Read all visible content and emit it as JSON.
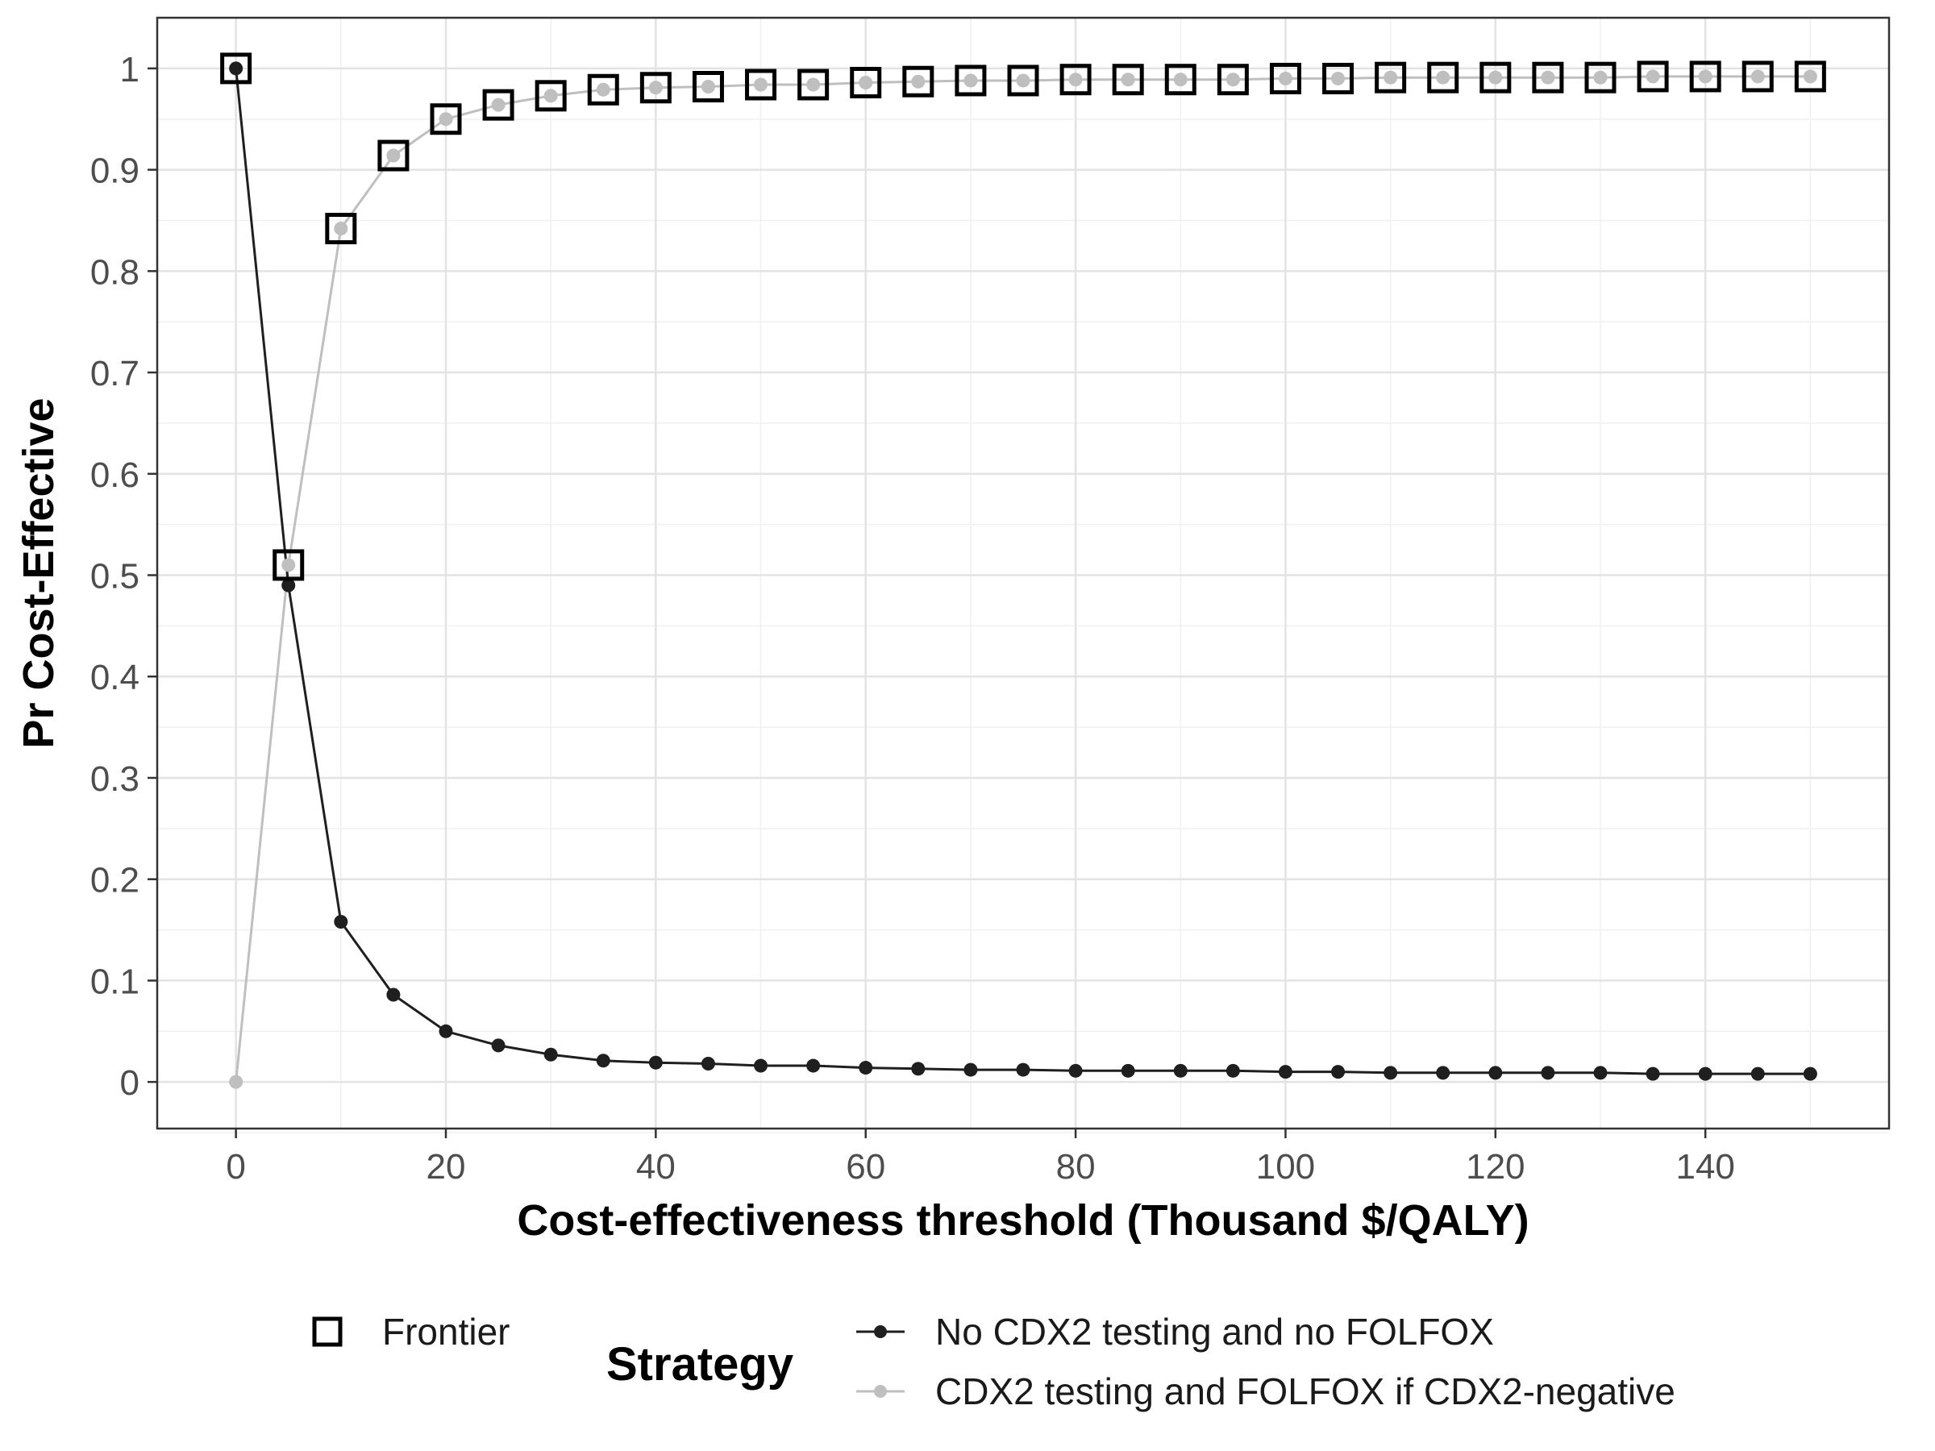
{
  "chart_data": {
    "type": "line",
    "title": "",
    "xlabel": "Cost-effectiveness threshold (Thousand $/QALY)",
    "ylabel": "Pr Cost-Effective",
    "xlim": [
      -7.5,
      157.5
    ],
    "ylim": [
      -0.046,
      1.05
    ],
    "x_ticks": [
      0,
      20,
      40,
      60,
      80,
      100,
      120,
      140
    ],
    "y_ticks": [
      0,
      0.1,
      0.2,
      0.3,
      0.4,
      0.5,
      0.6,
      0.7,
      0.8,
      0.9,
      1
    ],
    "x_tick_labels": [
      "0",
      "20",
      "40",
      "60",
      "80",
      "100",
      "120",
      "140"
    ],
    "y_tick_labels": [
      "0",
      "0.1",
      "0.2",
      "0.3",
      "0.4",
      "0.5",
      "0.6",
      "0.7",
      "0.8",
      "0.9",
      "1"
    ],
    "grid": true,
    "legend_position": "bottom",
    "x": [
      0,
      5,
      10,
      15,
      20,
      25,
      30,
      35,
      40,
      45,
      50,
      55,
      60,
      65,
      70,
      75,
      80,
      85,
      90,
      95,
      100,
      105,
      110,
      115,
      120,
      125,
      130,
      135,
      140,
      145,
      150
    ],
    "series": [
      {
        "name": "No CDX2 testing and no FOLFOX",
        "color": "#1f1f1f",
        "values": [
          1.0,
          0.49,
          0.158,
          0.086,
          0.05,
          0.036,
          0.027,
          0.021,
          0.019,
          0.018,
          0.016,
          0.016,
          0.014,
          0.013,
          0.012,
          0.012,
          0.011,
          0.011,
          0.011,
          0.011,
          0.01,
          0.01,
          0.009,
          0.009,
          0.009,
          0.009,
          0.009,
          0.008,
          0.008,
          0.008,
          0.008
        ]
      },
      {
        "name": "CDX2 testing and FOLFOX if CDX2-negative",
        "color": "#bfbfbf",
        "values": [
          0.0,
          0.51,
          0.842,
          0.914,
          0.95,
          0.964,
          0.973,
          0.979,
          0.981,
          0.982,
          0.984,
          0.984,
          0.986,
          0.987,
          0.988,
          0.988,
          0.989,
          0.989,
          0.989,
          0.989,
          0.99,
          0.99,
          0.991,
          0.991,
          0.991,
          0.991,
          0.991,
          0.992,
          0.992,
          0.992,
          0.992
        ]
      }
    ],
    "frontier": {
      "name": "Frontier",
      "values": [
        1.0,
        0.51,
        0.842,
        0.914,
        0.95,
        0.964,
        0.973,
        0.979,
        0.981,
        0.982,
        0.984,
        0.984,
        0.986,
        0.987,
        0.988,
        0.988,
        0.989,
        0.989,
        0.989,
        0.989,
        0.99,
        0.99,
        0.991,
        0.991,
        0.991,
        0.991,
        0.991,
        0.992,
        0.992,
        0.992,
        0.992
      ]
    },
    "legend": {
      "title": "Strategy",
      "frontier_label": "Frontier",
      "items": [
        "No CDX2 testing and no FOLFOX",
        "CDX2 testing and FOLFOX if CDX2-negative"
      ]
    }
  }
}
